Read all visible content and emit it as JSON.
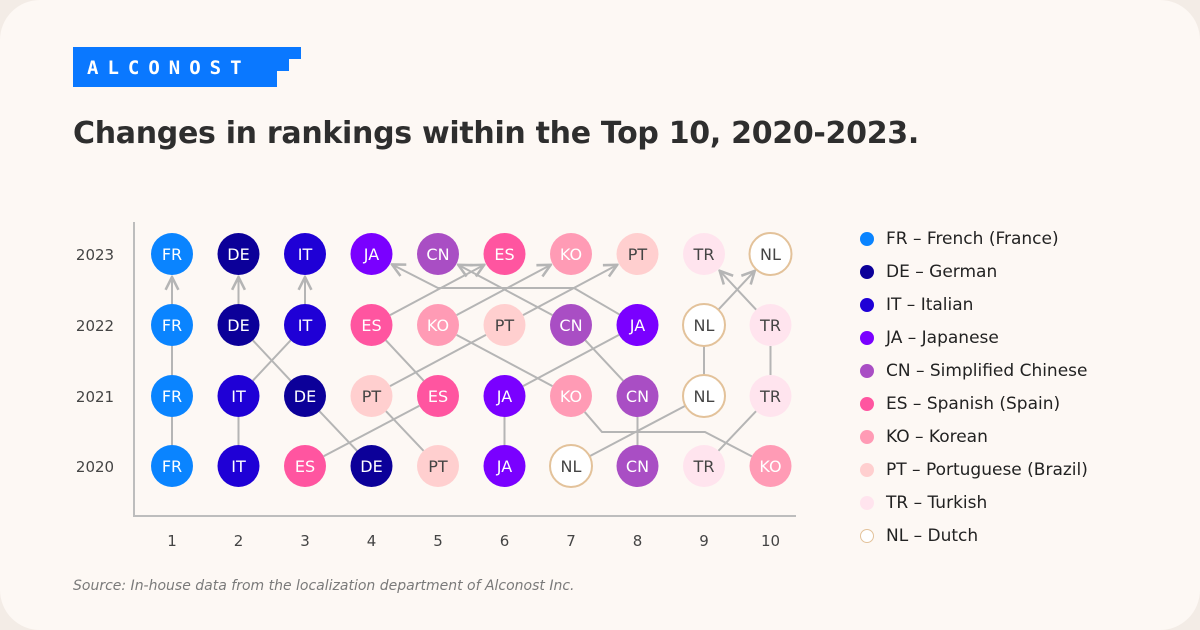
{
  "brand": {
    "logo_text": "ALCONOST",
    "color": "#0a78ff"
  },
  "title": "Changes in rankings within the Top 10, 2020-2023.",
  "source": "Source: In-house data from the localization department of Alconost Inc.",
  "chart_data": {
    "type": "scatter",
    "title": "Changes in rankings within the Top 10, 2020-2023.",
    "x_ticks": [
      "1",
      "2",
      "3",
      "4",
      "5",
      "6",
      "7",
      "8",
      "9",
      "10"
    ],
    "y_ticks": [
      "2023",
      "2022",
      "2021",
      "2020"
    ],
    "rankings": {
      "2020": [
        "FR",
        "IT",
        "ES",
        "DE",
        "PT",
        "JA",
        "NL",
        "CN",
        "TR",
        "KO"
      ],
      "2021": [
        "FR",
        "IT",
        "DE",
        "PT",
        "ES",
        "JA",
        "KO",
        "CN",
        "NL",
        "TR"
      ],
      "2022": [
        "FR",
        "DE",
        "IT",
        "ES",
        "KO",
        "PT",
        "CN",
        "JA",
        "NL",
        "TR"
      ],
      "2023": [
        "FR",
        "DE",
        "IT",
        "JA",
        "CN",
        "ES",
        "KO",
        "PT",
        "TR",
        "NL"
      ]
    },
    "languages": [
      {
        "code": "FR",
        "label": "FR – French (France)",
        "color": "#0a84ff",
        "text": "#ffffff"
      },
      {
        "code": "DE",
        "label": "DE – German",
        "color": "#0c0099",
        "text": "#ffffff"
      },
      {
        "code": "IT",
        "label": "IT – Italian",
        "color": "#1f00d6",
        "text": "#ffffff"
      },
      {
        "code": "JA",
        "label": "JA – Japanese",
        "color": "#7a00ff",
        "text": "#ffffff"
      },
      {
        "code": "CN",
        "label": "CN – Simplified Chinese",
        "color": "#a94ec4",
        "text": "#ffffff"
      },
      {
        "code": "ES",
        "label": "ES – Spanish (Spain)",
        "color": "#ff55a0",
        "text": "#ffffff"
      },
      {
        "code": "KO",
        "label": "KO – Korean",
        "color": "#ff9bb5",
        "text": "#ffffff"
      },
      {
        "code": "PT",
        "label": "PT – Portuguese (Brazil)",
        "color": "#ffcfcf",
        "text": "#444444"
      },
      {
        "code": "TR",
        "label": "TR – Turkish",
        "color": "#ffe4ee",
        "text": "#444444"
      },
      {
        "code": "NL",
        "label": "NL – Dutch",
        "color": "#ffffff",
        "border": "#e3c29a",
        "text": "#444444"
      }
    ],
    "legend": "right",
    "grid": false
  }
}
